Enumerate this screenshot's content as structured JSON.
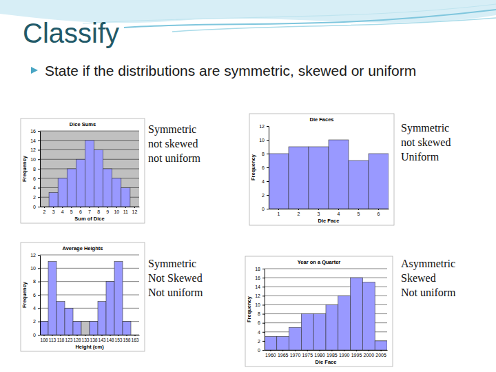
{
  "slide": {
    "title": "Classify",
    "text": "State if the distributions are symmetric, skewed or uniform"
  },
  "chart_data": [
    {
      "type": "bar",
      "title": "Dice Sums",
      "x_label": "Sum of Dice",
      "y_label": "Frequency",
      "categories": [
        "2",
        "3",
        "4",
        "5",
        "6",
        "7",
        "8",
        "9",
        "10",
        "11",
        "12"
      ],
      "values": [
        0,
        3,
        6,
        8,
        10,
        14,
        12,
        8,
        6,
        4,
        0
      ],
      "color": "#9999ff",
      "ylim": [
        0,
        16
      ],
      "yticks": [
        0,
        2,
        4,
        6,
        8,
        10,
        12,
        14,
        16
      ],
      "grid": true,
      "annotations": [
        "Symmetric",
        "not skewed",
        "not uniform"
      ]
    },
    {
      "type": "bar",
      "title": "Die Faces",
      "x_label": "Die Face",
      "y_label": "Frequency",
      "categories": [
        "1",
        "2",
        "3",
        "4",
        "5",
        "6"
      ],
      "values": [
        8,
        9,
        9,
        10,
        7,
        8
      ],
      "color": "#9999ff",
      "ylim": [
        0,
        12
      ],
      "yticks": [
        0,
        2,
        4,
        6,
        8,
        10,
        12
      ],
      "grid": false,
      "annotations": [
        "Symmetric",
        "not skewed",
        "Uniform"
      ]
    },
    {
      "type": "bar",
      "title": "Average Heights",
      "x_label": "Height (cm)",
      "y_label": "Frequency",
      "categories": [
        "108",
        "113",
        "118",
        "123",
        "128",
        "133",
        "138",
        "143",
        "148",
        "153",
        "158",
        "163"
      ],
      "values": [
        2,
        11,
        5,
        4,
        2,
        2,
        2,
        5,
        8,
        11,
        2,
        0
      ],
      "colors": [
        "#9999ff",
        "#9999ff",
        "#9999ff",
        "#9999ff",
        "#9999ff",
        "#c0c0c0",
        "#9999ff",
        "#9999ff",
        "#9999ff",
        "#9999ff",
        "#9999ff",
        "#9999ff"
      ],
      "ylim": [
        0,
        12
      ],
      "yticks": [
        0,
        2,
        4,
        6,
        8,
        10,
        12
      ],
      "grid": true,
      "annotations": [
        "Symmetric",
        "Not Skewed",
        "Not uniform"
      ]
    },
    {
      "type": "bar",
      "title": "Year on a Quarter",
      "x_label": "Die Face",
      "y_label": "Frequency",
      "categories": [
        "1960",
        "1965",
        "1970",
        "1975",
        "1980",
        "1985",
        "1990",
        "1995",
        "2000",
        "2005"
      ],
      "values": [
        3,
        3,
        5,
        8,
        8,
        10,
        12,
        16,
        15,
        2
      ],
      "color": "#9999ff",
      "ylim": [
        0,
        18
      ],
      "yticks": [
        0,
        2,
        4,
        6,
        8,
        10,
        12,
        14,
        16,
        18
      ],
      "grid": true,
      "annotations": [
        "Asymmetric",
        "Skewed",
        "Not uniform"
      ]
    }
  ]
}
